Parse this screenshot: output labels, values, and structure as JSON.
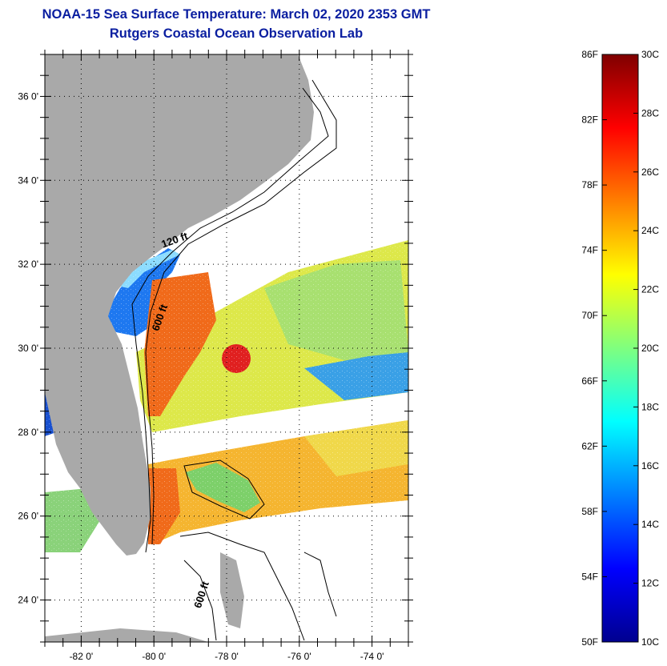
{
  "header": {
    "title": "NOAA-15 Sea Surface Temperature:  March 02, 2020 2353 GMT",
    "subtitle": "Rutgers Coastal Ocean Observation Lab"
  },
  "map": {
    "lon_range": [
      -83,
      -73
    ],
    "lat_range": [
      23,
      37
    ],
    "x_ticks": [
      {
        "value": -82,
        "label": "-82 0'"
      },
      {
        "value": -80,
        "label": "-80 0'"
      },
      {
        "value": -78,
        "label": "-78 0'"
      },
      {
        "value": -76,
        "label": "-76 0'"
      },
      {
        "value": -74,
        "label": "-74 0'"
      }
    ],
    "y_ticks": [
      {
        "value": 36,
        "label": "36 0'"
      },
      {
        "value": 34,
        "label": "34 0'"
      },
      {
        "value": 32,
        "label": "32 0'"
      },
      {
        "value": 30,
        "label": "30 0'"
      },
      {
        "value": 28,
        "label": "28 0'"
      },
      {
        "value": 26,
        "label": "26 0'"
      },
      {
        "value": 24,
        "label": "24 0'"
      }
    ],
    "contour_labels": [
      {
        "text": "120 ft",
        "lon": -79.4,
        "lat": 32.5,
        "rotate": -20
      },
      {
        "text": "600 ft",
        "lon": -79.75,
        "lat": 30.7,
        "rotate": -70
      },
      {
        "text": "600 ft",
        "lon": -78.6,
        "lat": 24.1,
        "rotate": -72
      }
    ],
    "colors": {
      "land": "#a9a9a9",
      "background": "#ffffff",
      "grid": "#000000"
    }
  },
  "colorbar": {
    "fahrenheit_labels": [
      "86F",
      "82F",
      "78F",
      "74F",
      "70F",
      "66F",
      "62F",
      "58F",
      "54F",
      "50F"
    ],
    "fahrenheit_values": [
      86,
      82,
      78,
      74,
      70,
      66,
      62,
      58,
      54,
      50
    ],
    "celsius_labels": [
      "30C",
      "28C",
      "26C",
      "24C",
      "22C",
      "20C",
      "18C",
      "16C",
      "14C",
      "12C",
      "10C"
    ],
    "celsius_values": [
      30,
      28,
      26,
      24,
      22,
      20,
      18,
      16,
      14,
      12,
      10
    ],
    "range_c": [
      10,
      30
    ],
    "stops": [
      "#7f0000",
      "#ff0000",
      "#ff7f00",
      "#ffff00",
      "#7fff7f",
      "#00ffff",
      "#007fff",
      "#0000ff",
      "#00008f"
    ]
  }
}
